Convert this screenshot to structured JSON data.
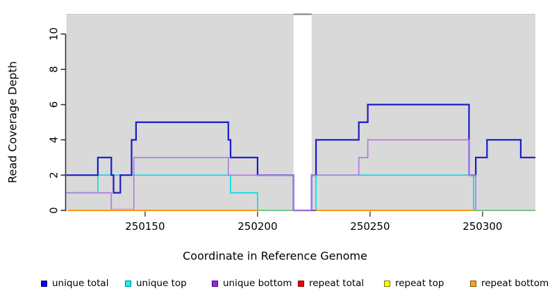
{
  "chart_data": {
    "type": "line",
    "subtype": "step-function-coverage",
    "title": "",
    "xlabel": "Coordinate in Reference Genome",
    "ylabel": "Read Coverage Depth",
    "x_range": [
      250115,
      250323.5
    ],
    "y_range": [
      0,
      11.14
    ],
    "x_ticks": [
      "250150",
      "250200",
      "250250",
      "250300"
    ],
    "x_tick_values": [
      250150,
      250200,
      250250,
      250300
    ],
    "y_ticks": [
      "0",
      "2",
      "4",
      "6",
      "8",
      "10"
    ],
    "y_tick_values": [
      0,
      2,
      4,
      6,
      8,
      10
    ],
    "grid": false,
    "plot_background": "#d9d9d9",
    "gap_region": {
      "x_start": 250216,
      "x_end": 250224,
      "fill": "#ffffff",
      "cap_color": "#8a8a8a"
    },
    "series": [
      {
        "name": "unique total",
        "color": "#1a1acc",
        "width": 2.2,
        "segments": [
          [
            [
              250115,
              2
            ],
            [
              250129,
              3
            ],
            [
              250135,
              2
            ],
            [
              250136,
              1
            ],
            [
              250139,
              2
            ],
            [
              250144,
              4
            ],
            [
              250146,
              5
            ],
            [
              250187,
              4
            ],
            [
              250188,
              3
            ],
            [
              250200,
              2
            ],
            [
              250216,
              0
            ],
            [
              250224,
              2
            ],
            [
              250226,
              4
            ],
            [
              250245,
              5
            ],
            [
              250249,
              6
            ],
            [
              250294,
              2
            ],
            [
              250297,
              3
            ],
            [
              250302,
              4
            ],
            [
              250317,
              3
            ],
            [
              250323.5,
              3
            ]
          ]
        ]
      },
      {
        "name": "unique top",
        "color": "#00dfe6",
        "width": 1.7,
        "segments": [
          [
            [
              250115,
              1
            ],
            [
              250129,
              2
            ],
            [
              250188,
              1
            ],
            [
              250200,
              0
            ],
            [
              250216,
              0
            ]
          ],
          [
            [
              250224,
              0
            ],
            [
              250226,
              2
            ],
            [
              250296,
              0
            ],
            [
              250323.5,
              0
            ]
          ]
        ]
      },
      {
        "name": "unique bottom",
        "color": "#ae7cde",
        "width": 1.7,
        "segments": [
          [
            [
              250115,
              1
            ],
            [
              250135,
              0
            ],
            [
              250145,
              3
            ],
            [
              250187,
              2
            ],
            [
              250216,
              0
            ],
            [
              250224,
              2
            ],
            [
              250245,
              3
            ],
            [
              250249,
              4
            ],
            [
              250294,
              2
            ],
            [
              250297,
              0
            ],
            [
              250323.5,
              0
            ]
          ]
        ]
      },
      {
        "name": "repeat total",
        "color": "#ee0000",
        "width": 1.7,
        "constant_value": 0,
        "segments": []
      },
      {
        "name": "repeat top",
        "color": "#ffff00",
        "width": 1.7,
        "constant_value": 0,
        "segments": []
      },
      {
        "name": "repeat bottom",
        "color": "#ff9614",
        "width": 2,
        "constant_value": 0,
        "segments": []
      }
    ],
    "baseline_segments": [
      {
        "x": [
          250115.8,
          250200
        ],
        "color": "#ff9614",
        "width": 2,
        "dy": 0
      },
      {
        "x": [
          250200,
          250216
        ],
        "color": "#7cc87c",
        "width": 1.8,
        "dy": 0
      },
      {
        "x": [
          250224,
          250226
        ],
        "color": "#6a52dc",
        "width": 2,
        "dy": 0
      },
      {
        "x": [
          250226,
          250296
        ],
        "color": "#ff9614",
        "width": 2,
        "dy": 0
      },
      {
        "x": [
          250296,
          250323.5
        ],
        "color": "#7cc87c",
        "width": 1.8,
        "dy": 0
      },
      {
        "x": [
          250135,
          250145
        ],
        "color": "#c9a7e8",
        "width": 1.6,
        "dy": -1.7
      }
    ],
    "legend": {
      "position": "bottom",
      "items": [
        {
          "label": "unique total",
          "fill": "#0000f5",
          "border": "#00007a"
        },
        {
          "label": "unique top",
          "fill": "#00ffff",
          "border": "#007a7a"
        },
        {
          "label": "unique bottom",
          "fill": "#a020f0",
          "border": "#3d1060"
        },
        {
          "label": "repeat total",
          "fill": "#ee0000",
          "border": "#7a0000"
        },
        {
          "label": "repeat top",
          "fill": "#ffff00",
          "border": "#7a7a00"
        },
        {
          "label": "repeat bottom",
          "fill": "#ffa514",
          "border": "#7a5200"
        }
      ]
    },
    "axis_color": "#333333",
    "tick_color": "#555555",
    "tick_label_color": "#000000",
    "tick_label_size": 15
  },
  "labels": {
    "x_axis_title": "Coordinate in Reference Genome",
    "y_axis_title": "Read Coverage Depth"
  }
}
